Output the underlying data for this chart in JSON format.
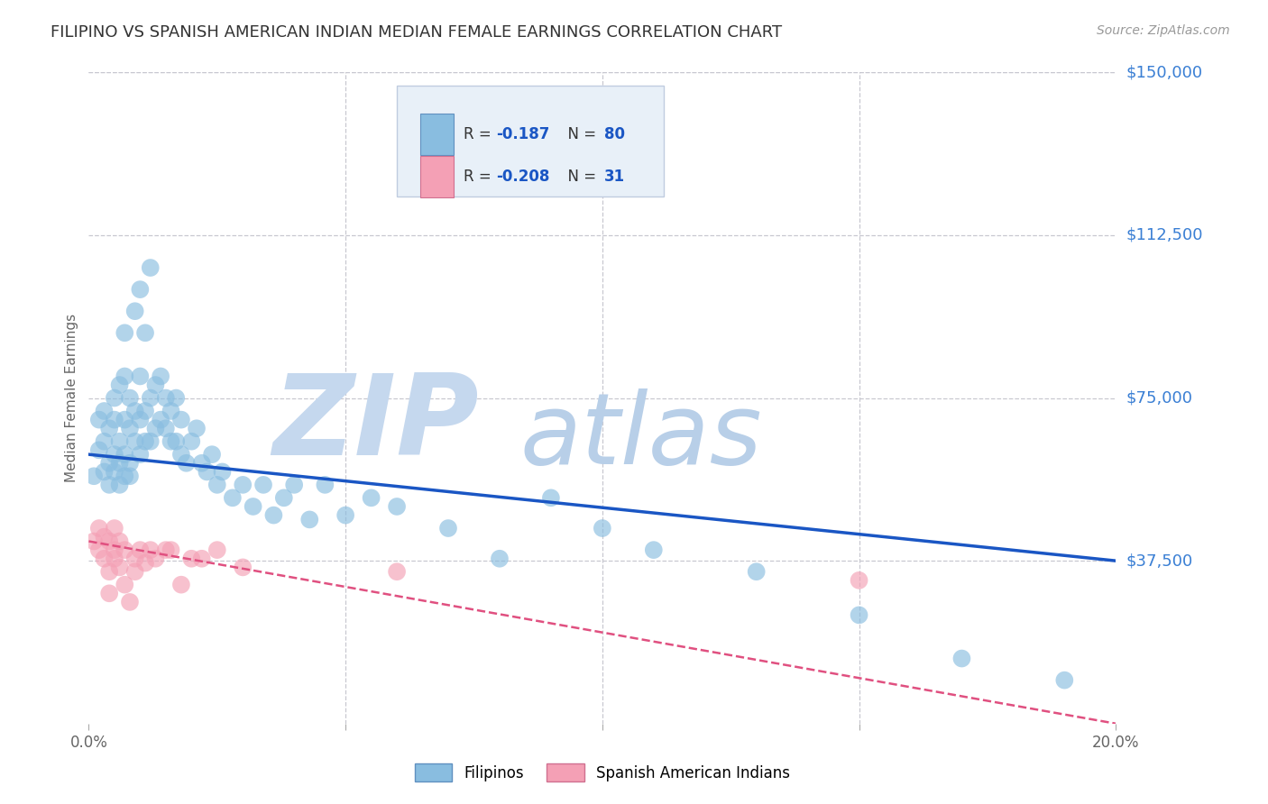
{
  "title": "FILIPINO VS SPANISH AMERICAN INDIAN MEDIAN FEMALE EARNINGS CORRELATION CHART",
  "source": "Source: ZipAtlas.com",
  "ylabel": "Median Female Earnings",
  "watermark_zip": "ZIP",
  "watermark_atlas": "atlas",
  "xlim": [
    0.0,
    0.2
  ],
  "ylim": [
    0,
    150000
  ],
  "ytick_vals": [
    0,
    37500,
    75000,
    112500,
    150000
  ],
  "ytick_labels": [
    "",
    "$37,500",
    "$75,000",
    "$112,500",
    "$150,000"
  ],
  "xtick_vals": [
    0.0,
    0.05,
    0.1,
    0.15,
    0.2
  ],
  "xtick_labels": [
    "0.0%",
    "",
    "",
    "",
    "20.0%"
  ],
  "filipino_color": "#89bde0",
  "spanish_color": "#f4a0b5",
  "line_blue": "#1a56c4",
  "line_pink": "#e05080",
  "grid_color": "#c8c8d0",
  "background_color": "#ffffff",
  "title_color": "#333333",
  "axis_color": "#666666",
  "ytick_color": "#3a7fd4",
  "watermark_zip_color": "#c5d8ee",
  "watermark_atlas_color": "#b8cfe8",
  "legend_box_color": "#e8f0f8",
  "legend_border_color": "#c0cce0",
  "source_color": "#999999",
  "filipino_x": [
    0.001,
    0.002,
    0.002,
    0.003,
    0.003,
    0.003,
    0.004,
    0.004,
    0.004,
    0.005,
    0.005,
    0.005,
    0.005,
    0.006,
    0.006,
    0.006,
    0.006,
    0.007,
    0.007,
    0.007,
    0.007,
    0.007,
    0.008,
    0.008,
    0.008,
    0.008,
    0.009,
    0.009,
    0.009,
    0.01,
    0.01,
    0.01,
    0.01,
    0.011,
    0.011,
    0.011,
    0.012,
    0.012,
    0.012,
    0.013,
    0.013,
    0.014,
    0.014,
    0.015,
    0.015,
    0.016,
    0.016,
    0.017,
    0.017,
    0.018,
    0.018,
    0.019,
    0.02,
    0.021,
    0.022,
    0.023,
    0.024,
    0.025,
    0.026,
    0.028,
    0.03,
    0.032,
    0.034,
    0.036,
    0.038,
    0.04,
    0.043,
    0.046,
    0.05,
    0.055,
    0.06,
    0.07,
    0.08,
    0.09,
    0.1,
    0.11,
    0.13,
    0.15,
    0.17,
    0.19
  ],
  "filipino_y": [
    57000,
    63000,
    70000,
    58000,
    65000,
    72000,
    60000,
    68000,
    55000,
    62000,
    70000,
    58000,
    75000,
    60000,
    65000,
    78000,
    55000,
    62000,
    70000,
    80000,
    57000,
    90000,
    60000,
    68000,
    75000,
    57000,
    65000,
    72000,
    95000,
    62000,
    70000,
    80000,
    100000,
    65000,
    72000,
    90000,
    65000,
    75000,
    105000,
    68000,
    78000,
    70000,
    80000,
    68000,
    75000,
    65000,
    72000,
    65000,
    75000,
    62000,
    70000,
    60000,
    65000,
    68000,
    60000,
    58000,
    62000,
    55000,
    58000,
    52000,
    55000,
    50000,
    55000,
    48000,
    52000,
    55000,
    47000,
    55000,
    48000,
    52000,
    50000,
    45000,
    38000,
    52000,
    45000,
    40000,
    35000,
    25000,
    15000,
    10000
  ],
  "spanish_x": [
    0.001,
    0.002,
    0.002,
    0.003,
    0.003,
    0.004,
    0.004,
    0.004,
    0.005,
    0.005,
    0.005,
    0.006,
    0.006,
    0.007,
    0.007,
    0.008,
    0.009,
    0.009,
    0.01,
    0.011,
    0.012,
    0.013,
    0.015,
    0.016,
    0.018,
    0.02,
    0.022,
    0.025,
    0.03,
    0.06,
    0.15
  ],
  "spanish_y": [
    42000,
    40000,
    45000,
    38000,
    43000,
    35000,
    42000,
    30000,
    40000,
    45000,
    38000,
    36000,
    42000,
    32000,
    40000,
    28000,
    38000,
    35000,
    40000,
    37000,
    40000,
    38000,
    40000,
    40000,
    32000,
    38000,
    38000,
    40000,
    36000,
    35000,
    33000
  ],
  "blue_line_y_at_0": 62000,
  "blue_line_y_at_20pct": 37500,
  "pink_line_y_at_0": 42000,
  "pink_line_y_at_20pct": 0
}
